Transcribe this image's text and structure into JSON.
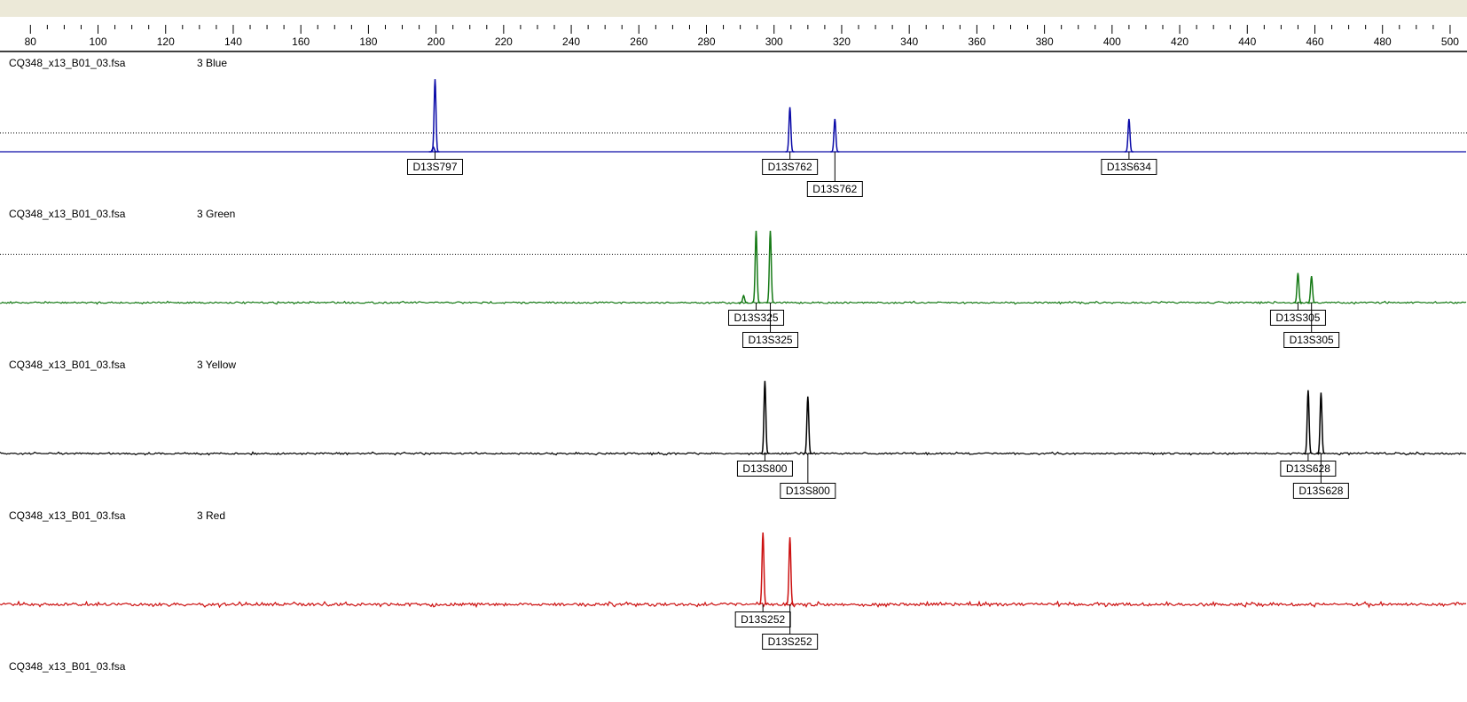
{
  "ruler": {
    "xlim": [
      71,
      505
    ],
    "ticks": [
      80,
      100,
      120,
      140,
      160,
      180,
      200,
      220,
      240,
      260,
      280,
      300,
      320,
      340,
      360,
      380,
      400,
      420,
      440,
      460,
      480,
      500
    ]
  },
  "panels": [
    {
      "file": "CQ348_x13_B01_03.fsa",
      "dye": "3 Blue",
      "color": "#0a0aa8",
      "ylim": [
        0,
        100
      ],
      "threshold": 24,
      "peaks": [
        {
          "size": 199.2,
          "height": 6
        },
        {
          "size": 199.7,
          "height": 93
        },
        {
          "size": 304.7,
          "height": 57
        },
        {
          "size": 318,
          "height": 42
        },
        {
          "size": 405,
          "height": 42
        }
      ],
      "labels": [
        {
          "text": "D13S797",
          "size": 199.7
        },
        {
          "text": "D13S762",
          "size": 304.7
        },
        {
          "text": "D13S762",
          "size": 318
        },
        {
          "text": "D13S634",
          "size": 405
        }
      ]
    },
    {
      "file": "CQ348_x13_B01_03.fsa",
      "dye": "3 Green",
      "color": "#167a16",
      "ylim": [
        0,
        100
      ],
      "threshold": 62,
      "peaks": [
        {
          "size": 291,
          "height": 9
        },
        {
          "size": 294.7,
          "height": 92
        },
        {
          "size": 298.9,
          "height": 92
        },
        {
          "size": 455,
          "height": 38
        },
        {
          "size": 459,
          "height": 34
        }
      ],
      "labels": [
        {
          "text": "D13S325",
          "size": 294.7
        },
        {
          "text": "D13S325",
          "size": 298.9
        },
        {
          "text": "D13S305",
          "size": 455
        },
        {
          "text": "D13S305",
          "size": 459
        }
      ]
    },
    {
      "file": "CQ348_x13_B01_03.fsa",
      "dye": "3 Yellow",
      "color": "#000000",
      "ylim": [
        0,
        100
      ],
      "peaks": [
        {
          "size": 297.3,
          "height": 93
        },
        {
          "size": 310,
          "height": 73
        },
        {
          "size": 458,
          "height": 81
        },
        {
          "size": 461.8,
          "height": 78
        }
      ],
      "labels": [
        {
          "text": "D13S800",
          "size": 297.3
        },
        {
          "text": "D13S800",
          "size": 310
        },
        {
          "text": "D13S628",
          "size": 458
        },
        {
          "text": "D13S628",
          "size": 461.8
        }
      ]
    },
    {
      "file": "CQ348_x13_B01_03.fsa",
      "dye": "3 Red",
      "color": "#cc1010",
      "ylim": [
        0,
        100
      ],
      "peaks": [
        {
          "size": 296.7,
          "height": 92
        },
        {
          "size": 304.7,
          "height": 86
        }
      ],
      "labels": [
        {
          "text": "D13S252",
          "size": 296.7
        },
        {
          "text": "D13S252",
          "size": 304.7
        }
      ]
    },
    {
      "file": "CQ348_x13_B01_03.fsa"
    }
  ]
}
